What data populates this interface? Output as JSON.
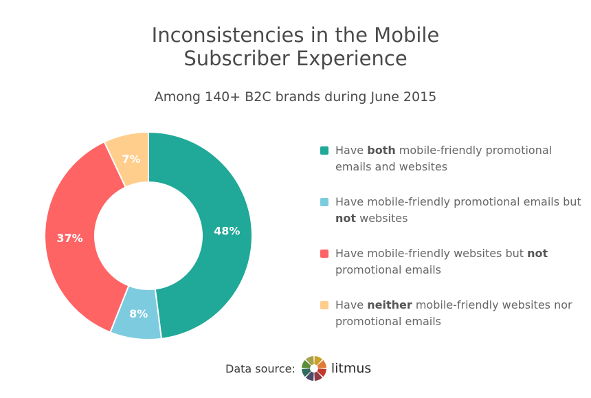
{
  "title": {
    "line1": "Inconsistencies in the Mobile",
    "line2": "Subscriber Experience"
  },
  "subtitle": "Among 140+ B2C brands during June 2015",
  "chart_data": {
    "type": "pie",
    "donut": true,
    "title": "Inconsistencies in the Mobile Subscriber Experience",
    "subtitle": "Among 140+ B2C brands during June 2015",
    "legend_position": "right",
    "slices": [
      {
        "value": 48,
        "label": "48%",
        "color": "#20a898"
      },
      {
        "value": 8,
        "label": "8%",
        "color": "#7dcbdf"
      },
      {
        "value": 37,
        "label": "37%",
        "color": "#ff6464"
      },
      {
        "value": 7,
        "label": "7%",
        "color": "#ffcd8c"
      }
    ]
  },
  "legend": [
    {
      "pre": "Have ",
      "bold": "both",
      "post": " mobile-friendly promotional emails and websites",
      "color": "#20a898"
    },
    {
      "pre": "Have mobile-friendly promotional emails but ",
      "bold": "not",
      "post": " websites",
      "color": "#7dcbdf"
    },
    {
      "pre": "Have mobile-friendly websites but ",
      "bold": "not",
      "post": " promotional emails",
      "color": "#ff6464"
    },
    {
      "pre": "Have ",
      "bold": "neither",
      "post": " mobile-friendly websites nor promotional emails",
      "color": "#ffcd8c"
    }
  ],
  "source": {
    "label": "Data source:",
    "brand": "litmus"
  },
  "logo_colors": [
    "#c9a227",
    "#e07b39",
    "#c0392b",
    "#8e3b46",
    "#4a4a6a",
    "#2e6b5e",
    "#5b8c3a",
    "#a7a14a"
  ]
}
